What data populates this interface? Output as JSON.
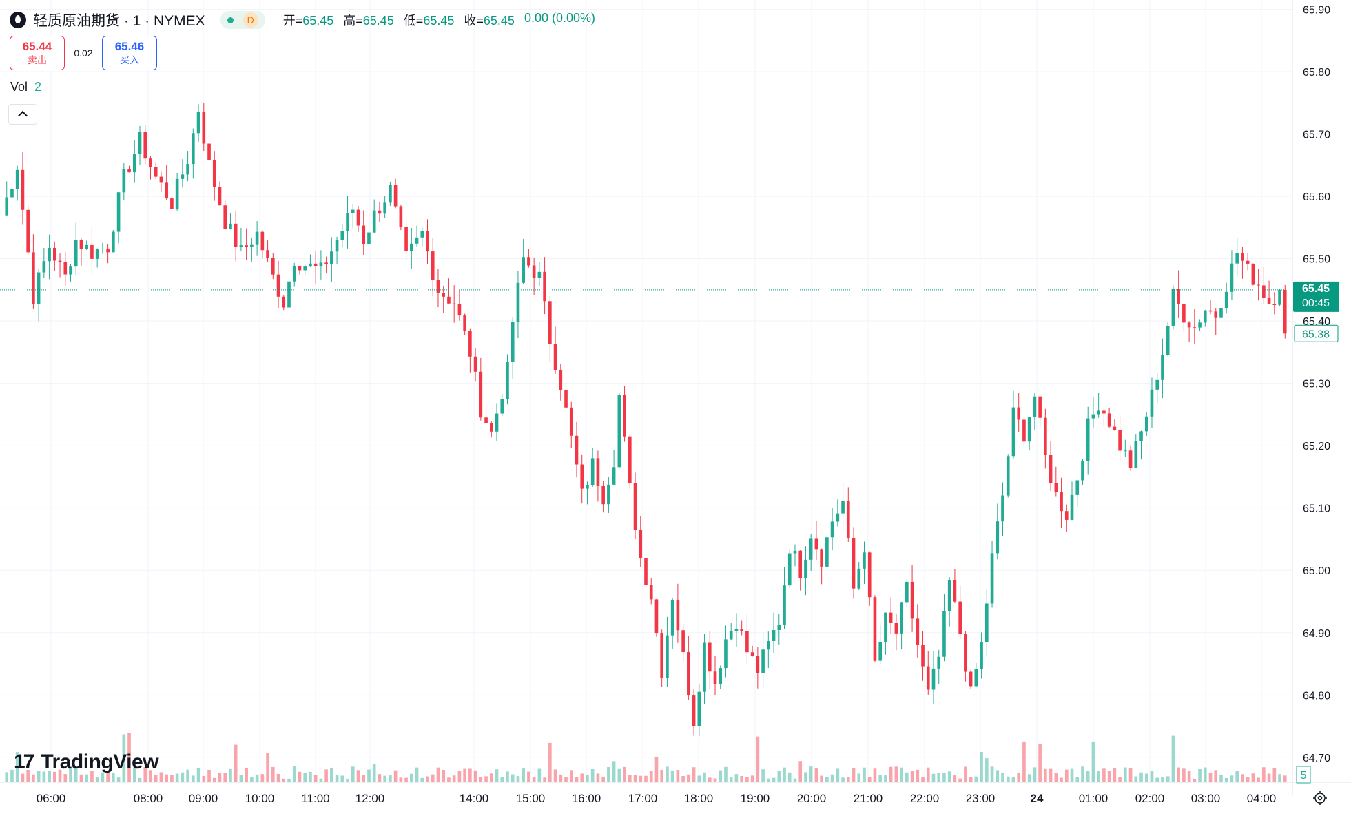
{
  "header": {
    "symbol_title": "轻质原油期货 · 1 · NYMEX",
    "interval_badge": "D",
    "ohlc": [
      {
        "label": "开=",
        "value": "65.45"
      },
      {
        "label": "高=",
        "value": "65.45"
      },
      {
        "label": "低=",
        "value": "65.45"
      },
      {
        "label": "收=",
        "value": "65.45"
      }
    ],
    "change": "0.00 (0.00%)"
  },
  "quote": {
    "sell_price": "65.44",
    "sell_label": "卖出",
    "spread": "0.02",
    "buy_price": "65.46",
    "buy_label": "买入"
  },
  "volume_legend": {
    "label": "Vol",
    "value": "2"
  },
  "branding": {
    "logo_text": "TradingView",
    "logo_mark": "17"
  },
  "icons": {
    "collapse": "chevron-up-icon",
    "settings": "gear-icon",
    "symbol": "oil-drop-icon"
  },
  "colors": {
    "up": "#22ab94",
    "down": "#f23645",
    "last_price_bg": "#089981",
    "grid": "#f0f3fa"
  },
  "chart_data": {
    "type": "candlestick",
    "y_axis": {
      "ticks": [
        "65.90",
        "65.80",
        "65.70",
        "65.60",
        "65.50",
        "65.40",
        "65.30",
        "65.20",
        "65.10",
        "65.00",
        "64.90",
        "64.80",
        "64.70"
      ],
      "range": [
        64.66,
        65.915
      ]
    },
    "x_axis": {
      "ticks": [
        "06:00",
        "08:00",
        "09:00",
        "10:00",
        "11:00",
        "12:00",
        "14:00",
        "15:00",
        "16:00",
        "17:00",
        "18:00",
        "19:00",
        "20:00",
        "21:00",
        "22:00",
        "23:00",
        "24",
        "01:00",
        "02:00",
        "03:00",
        "04:00"
      ]
    },
    "last_price": {
      "price": "65.45",
      "countdown": "00:45"
    },
    "secondary_price": "65.38",
    "volume_scale_label": "5",
    "price_path": [
      [
        0,
        65.57
      ],
      [
        3,
        65.65
      ],
      [
        6,
        65.44
      ],
      [
        9,
        65.52
      ],
      [
        12,
        65.47
      ],
      [
        14,
        65.53
      ],
      [
        17,
        65.51
      ],
      [
        20,
        65.52
      ],
      [
        23,
        65.63
      ],
      [
        26,
        65.69
      ],
      [
        29,
        65.63
      ],
      [
        32,
        65.59
      ],
      [
        35,
        65.66
      ],
      [
        37,
        65.74
      ],
      [
        39,
        65.65
      ],
      [
        42,
        65.56
      ],
      [
        45,
        65.51
      ],
      [
        48,
        65.54
      ],
      [
        51,
        65.47
      ],
      [
        53,
        65.43
      ],
      [
        55,
        65.5
      ],
      [
        57,
        65.49
      ],
      [
        60,
        65.48
      ],
      [
        63,
        65.53
      ],
      [
        66,
        65.58
      ],
      [
        68,
        65.53
      ],
      [
        70,
        65.57
      ],
      [
        73,
        65.61
      ],
      [
        76,
        65.5
      ],
      [
        79,
        65.54
      ],
      [
        82,
        65.45
      ],
      [
        85,
        65.43
      ],
      [
        88,
        65.35
      ],
      [
        90,
        65.26
      ],
      [
        92,
        65.22
      ],
      [
        95,
        65.32
      ],
      [
        96,
        65.4
      ],
      [
        98,
        65.5
      ],
      [
        101,
        65.47
      ],
      [
        103,
        65.37
      ],
      [
        105,
        65.3
      ],
      [
        107,
        65.21
      ],
      [
        109,
        65.12
      ],
      [
        111,
        65.17
      ],
      [
        113,
        65.12
      ],
      [
        115,
        65.18
      ],
      [
        116,
        65.28
      ],
      [
        118,
        65.13
      ],
      [
        120,
        65.02
      ],
      [
        122,
        64.96
      ],
      [
        124,
        64.84
      ],
      [
        126,
        64.96
      ],
      [
        128,
        64.86
      ],
      [
        130,
        64.76
      ],
      [
        132,
        64.88
      ],
      [
        134,
        64.82
      ],
      [
        136,
        64.89
      ],
      [
        138,
        64.92
      ],
      [
        140,
        64.87
      ],
      [
        142,
        64.84
      ],
      [
        144,
        64.88
      ],
      [
        146,
        64.92
      ],
      [
        148,
        65.04
      ],
      [
        150,
        65.0
      ],
      [
        152,
        65.06
      ],
      [
        154,
        65.02
      ],
      [
        156,
        65.08
      ],
      [
        158,
        65.11
      ],
      [
        160,
        64.97
      ],
      [
        162,
        65.04
      ],
      [
        164,
        64.85
      ],
      [
        166,
        64.92
      ],
      [
        168,
        64.9
      ],
      [
        170,
        64.97
      ],
      [
        172,
        64.88
      ],
      [
        174,
        64.8
      ],
      [
        176,
        64.86
      ],
      [
        178,
        64.98
      ],
      [
        180,
        64.9
      ],
      [
        182,
        64.8
      ],
      [
        184,
        64.88
      ],
      [
        186,
        65.02
      ],
      [
        188,
        65.12
      ],
      [
        190,
        65.25
      ],
      [
        192,
        65.22
      ],
      [
        194,
        65.28
      ],
      [
        196,
        65.18
      ],
      [
        198,
        65.12
      ],
      [
        200,
        65.09
      ],
      [
        202,
        65.15
      ],
      [
        204,
        65.23
      ],
      [
        206,
        65.27
      ],
      [
        208,
        65.24
      ],
      [
        210,
        65.2
      ],
      [
        212,
        65.17
      ],
      [
        214,
        65.22
      ],
      [
        216,
        65.28
      ],
      [
        218,
        65.35
      ],
      [
        220,
        65.44
      ],
      [
        222,
        65.41
      ],
      [
        224,
        65.39
      ],
      [
        226,
        65.42
      ],
      [
        228,
        65.41
      ],
      [
        230,
        65.46
      ],
      [
        232,
        65.51
      ],
      [
        234,
        65.48
      ],
      [
        236,
        65.46
      ],
      [
        238,
        65.43
      ],
      [
        240,
        65.45
      ],
      [
        241,
        65.38
      ]
    ]
  }
}
